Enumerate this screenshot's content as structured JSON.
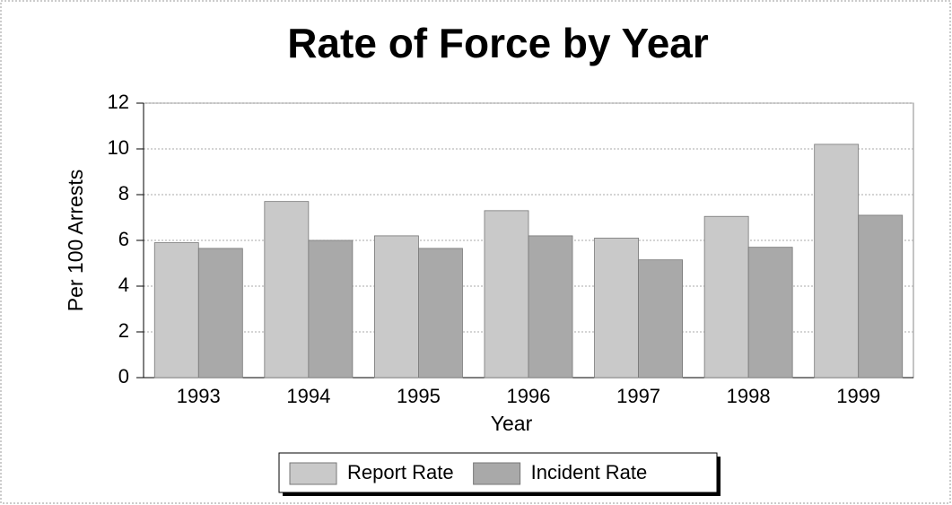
{
  "chart_data": {
    "type": "bar",
    "title": "Rate of Force by Year",
    "x_label": "Year",
    "y_label": "Per 100 Arrests",
    "categories": [
      "1993",
      "1994",
      "1995",
      "1996",
      "1997",
      "1998",
      "1999"
    ],
    "series": [
      {
        "name": "Report Rate",
        "color": "#c9c9c9",
        "values": [
          5.9,
          7.7,
          6.2,
          7.3,
          6.1,
          7.05,
          10.2
        ]
      },
      {
        "name": "Incident Rate",
        "color": "#a9a9a9",
        "values": [
          5.65,
          6.0,
          5.65,
          6.2,
          5.15,
          5.7,
          7.1
        ]
      }
    ],
    "ylim": [
      0,
      12
    ],
    "yticks": [
      0,
      2,
      4,
      6,
      8,
      10,
      12
    ],
    "grid": true,
    "legend": "bottom"
  }
}
